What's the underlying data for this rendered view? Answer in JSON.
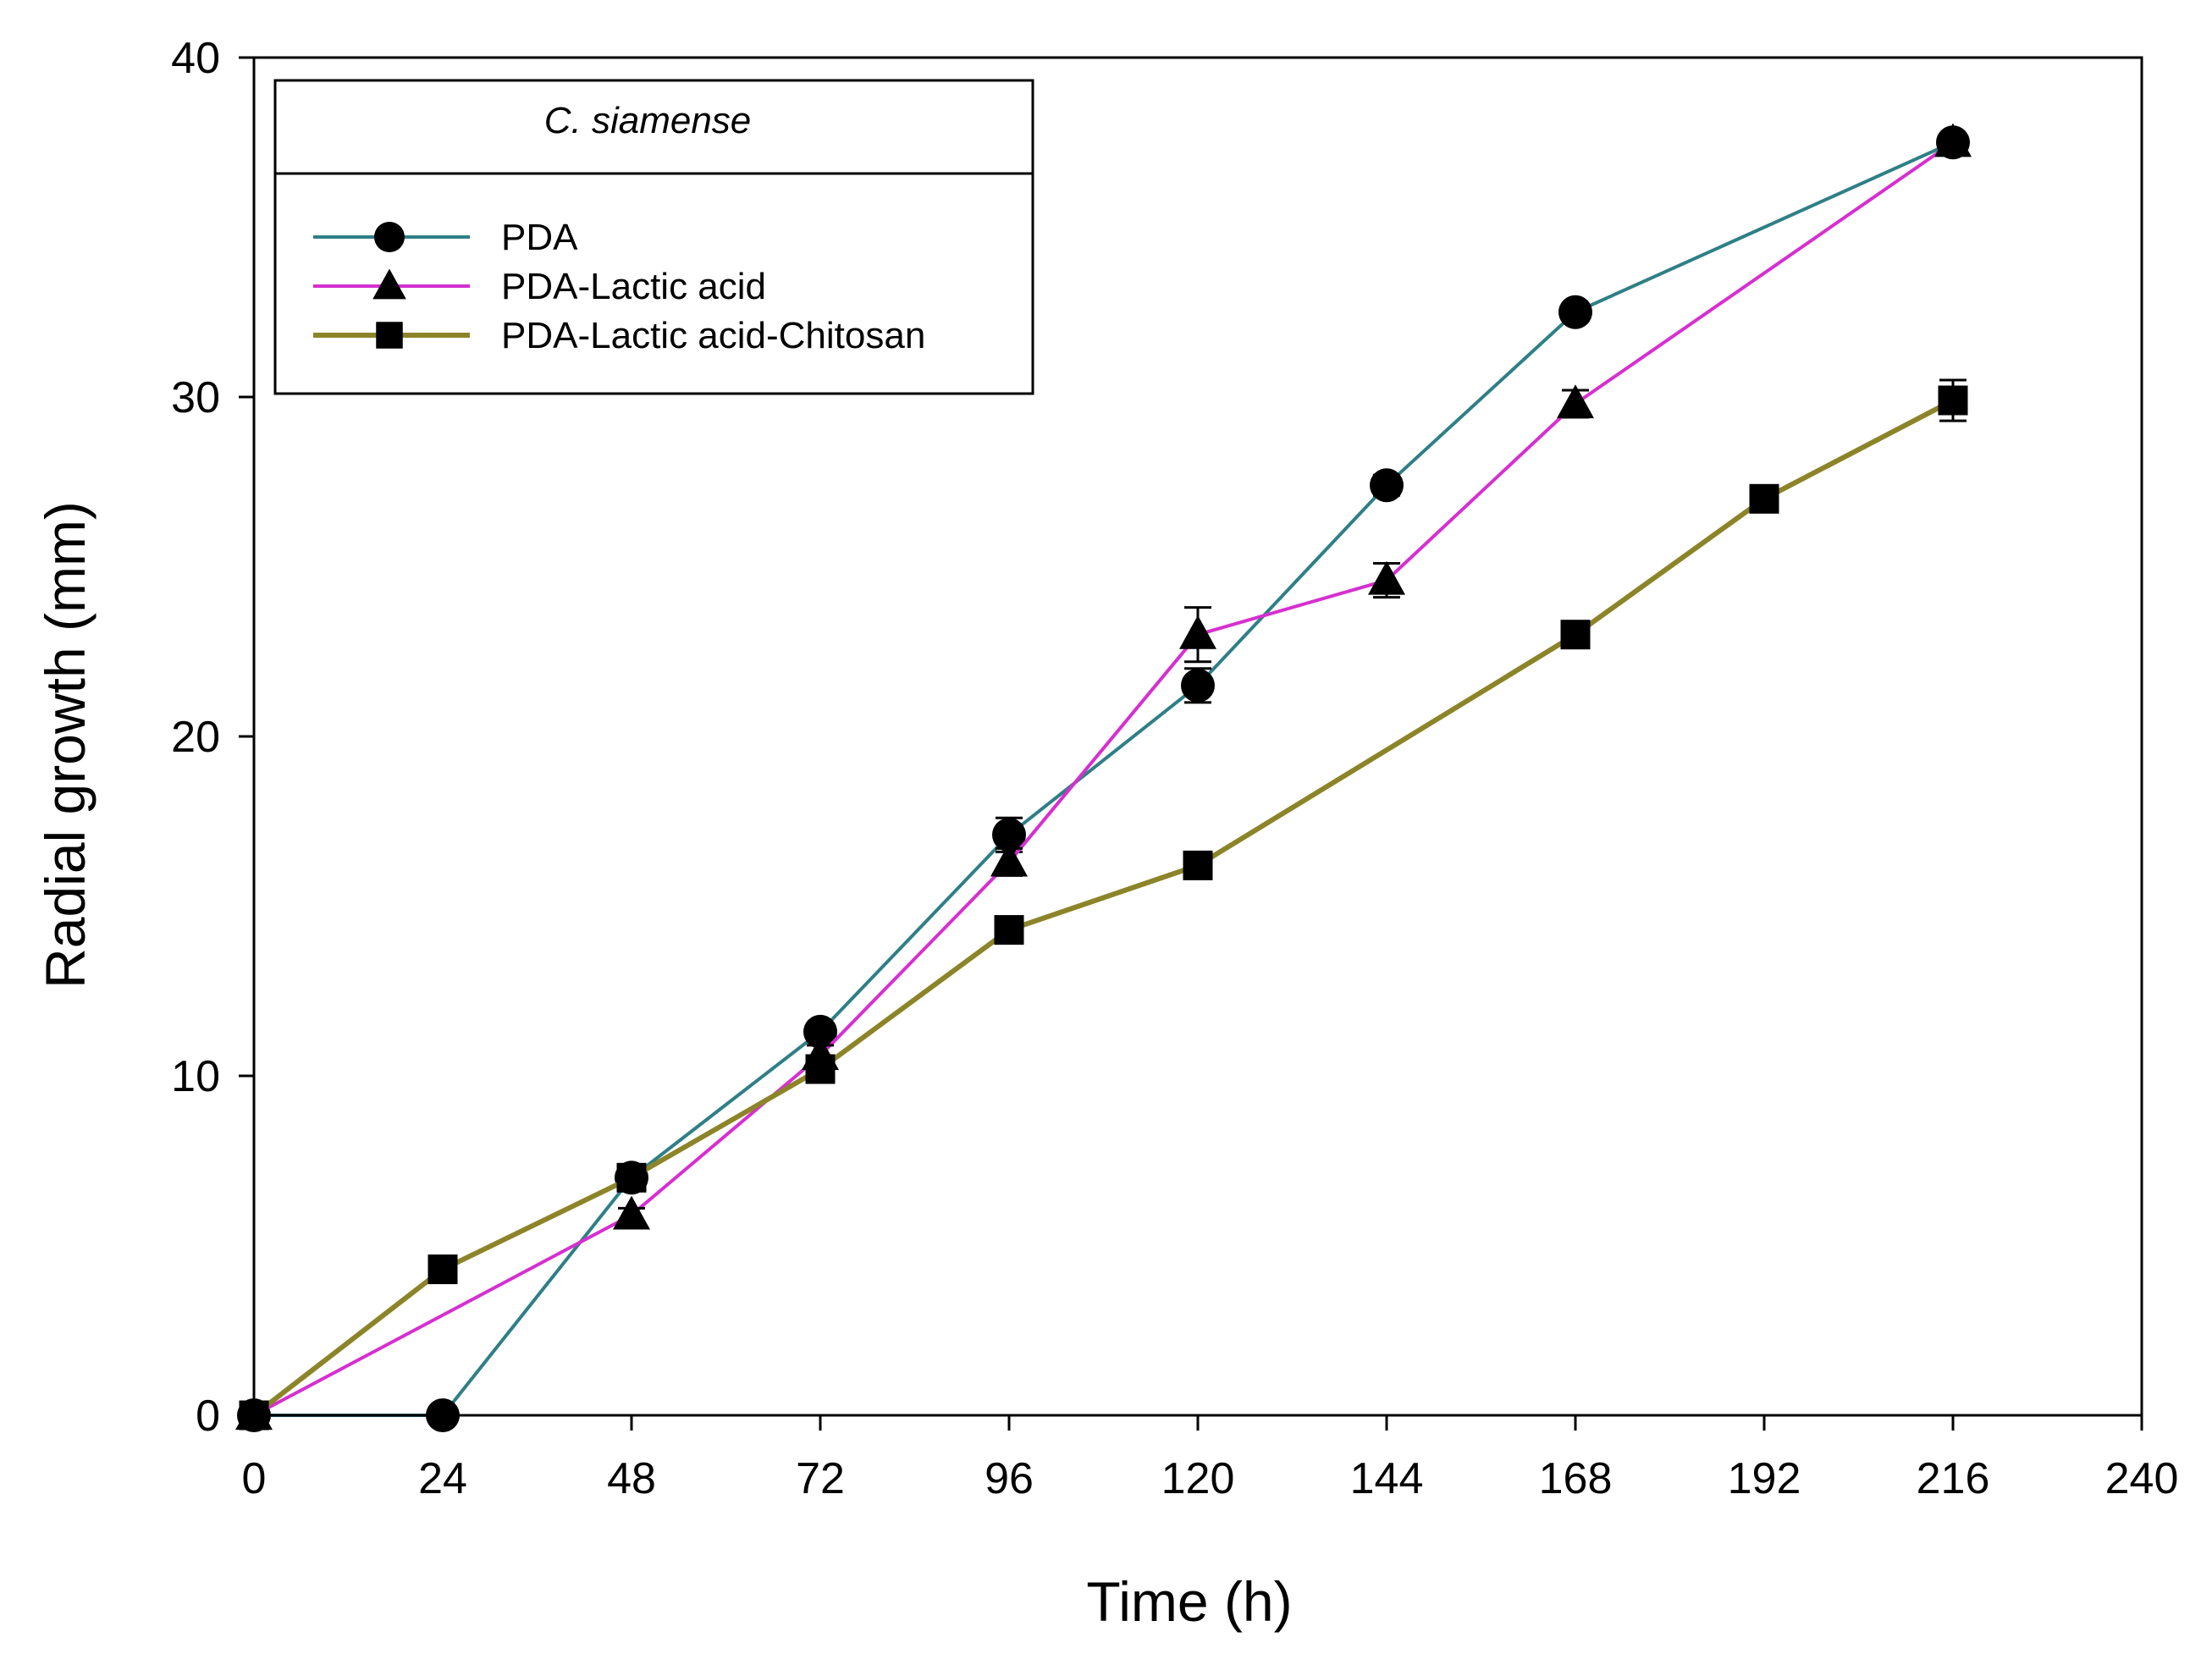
{
  "chart_data": {
    "type": "line",
    "title": "",
    "xlabel": "Time (h)",
    "ylabel": "Radial growth (mm)",
    "xlim": [
      0,
      240
    ],
    "ylim": [
      0,
      40
    ],
    "xticks": [
      0,
      24,
      48,
      72,
      96,
      120,
      144,
      168,
      192,
      216,
      240
    ],
    "yticks": [
      0,
      10,
      20,
      30,
      40
    ],
    "grid": false,
    "legend": {
      "title": "C. siamense",
      "placement": "top-left"
    },
    "series": [
      {
        "name": "PDA",
        "color": "#2f7f86",
        "marker": "circle",
        "x": [
          0,
          24,
          48,
          72,
          96,
          120,
          144,
          168,
          216
        ],
        "y": [
          0,
          0,
          7.0,
          11.3,
          17.1,
          21.5,
          27.4,
          32.5,
          37.5
        ],
        "err": [
          0,
          0,
          0.3,
          0.2,
          0.5,
          0.5,
          0.3,
          0.2,
          0.2
        ]
      },
      {
        "name": "PDA-Lactic acid",
        "color": "#d62fd0",
        "marker": "triangle",
        "x": [
          0,
          48,
          72,
          96,
          120,
          144,
          168,
          216
        ],
        "y": [
          0,
          5.9,
          10.6,
          16.3,
          23.0,
          24.6,
          29.8,
          37.5
        ],
        "err": [
          0,
          0.2,
          0.3,
          0.4,
          0.8,
          0.5,
          0.4,
          0.2
        ]
      },
      {
        "name": "PDA-Lactic acid-Chitosan",
        "color": "#8c8428",
        "marker": "square",
        "x": [
          0,
          24,
          48,
          72,
          96,
          120,
          168,
          192,
          216
        ],
        "y": [
          0,
          4.3,
          7.0,
          10.2,
          14.3,
          16.2,
          23.0,
          27.0,
          29.9
        ],
        "err": [
          0,
          0.3,
          0.3,
          0.4,
          0.3,
          0.3,
          0.3,
          0.3,
          0.6
        ]
      }
    ]
  }
}
